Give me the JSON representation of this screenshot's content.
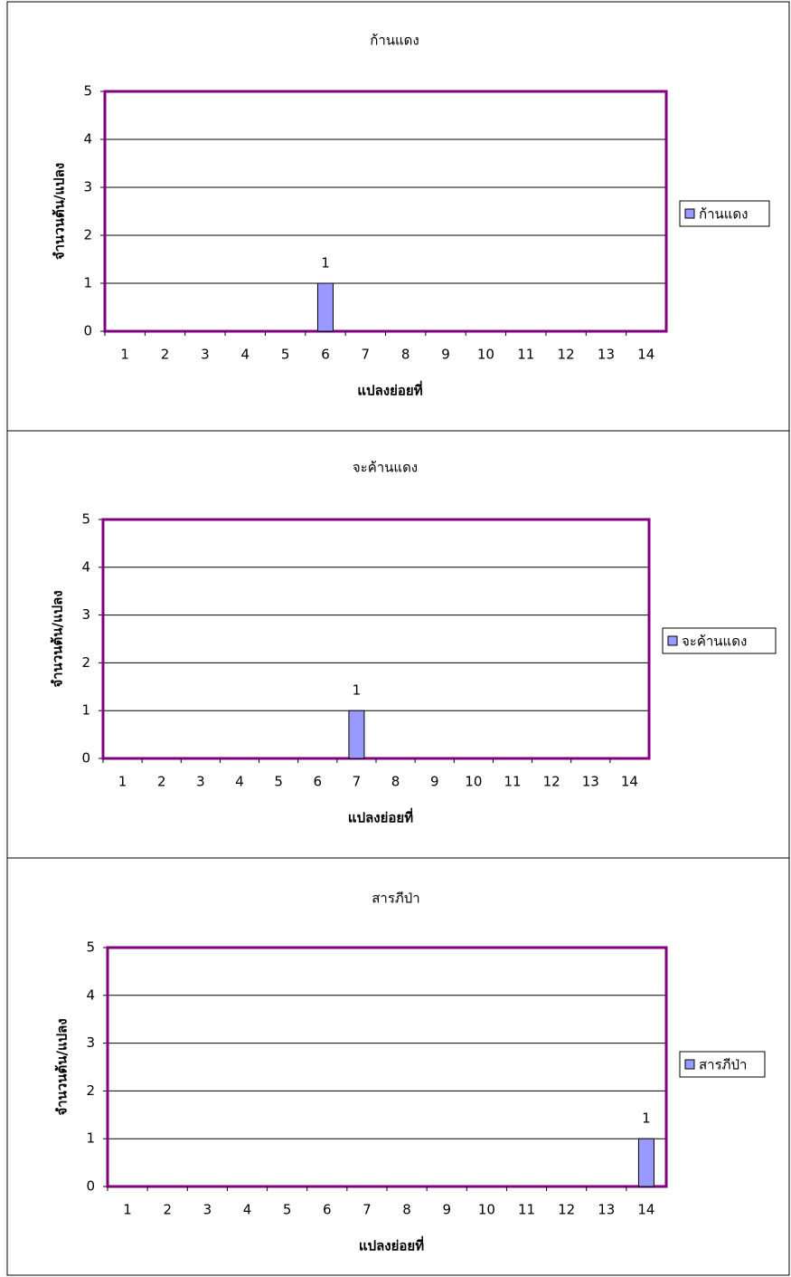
{
  "chart_data": [
    {
      "type": "bar",
      "title": "ก้านแดง",
      "x_label": "แปลงย่อยที่",
      "y_label": "จำนวนต้น/แปลง",
      "categories": [
        "1",
        "2",
        "3",
        "4",
        "5",
        "6",
        "7",
        "8",
        "9",
        "10",
        "11",
        "12",
        "13",
        "14"
      ],
      "series": [
        {
          "name": "ก้านแดง",
          "color": "#9999ff",
          "values": [
            0,
            0,
            0,
            0,
            0,
            1,
            0,
            0,
            0,
            0,
            0,
            0,
            0,
            0
          ]
        }
      ],
      "ylim": [
        0,
        5
      ],
      "yticks": [
        0,
        1,
        2,
        3,
        4,
        5
      ],
      "grid": true,
      "legend": "right"
    },
    {
      "type": "bar",
      "title": "จะค้านแดง",
      "x_label": "แปลงย่อยที่",
      "y_label": "จำนวนต้น/แปลง",
      "categories": [
        "1",
        "2",
        "3",
        "4",
        "5",
        "6",
        "7",
        "8",
        "9",
        "10",
        "11",
        "12",
        "13",
        "14"
      ],
      "series": [
        {
          "name": "จะค้านแดง",
          "color": "#9999ff",
          "values": [
            0,
            0,
            0,
            0,
            0,
            0,
            1,
            0,
            0,
            0,
            0,
            0,
            0,
            0
          ]
        }
      ],
      "ylim": [
        0,
        5
      ],
      "yticks": [
        0,
        1,
        2,
        3,
        4,
        5
      ],
      "grid": true,
      "legend": "right"
    },
    {
      "type": "bar",
      "title": "สารภีป่า",
      "x_label": "แปลงย่อยที่",
      "y_label": "จำนวนต้น/แปลง",
      "categories": [
        "1",
        "2",
        "3",
        "4",
        "5",
        "6",
        "7",
        "8",
        "9",
        "10",
        "11",
        "12",
        "13",
        "14"
      ],
      "series": [
        {
          "name": "สารภีป่า",
          "color": "#9999ff",
          "values": [
            0,
            0,
            0,
            0,
            0,
            0,
            0,
            0,
            0,
            0,
            0,
            0,
            0,
            1
          ]
        }
      ],
      "ylim": [
        0,
        5
      ],
      "yticks": [
        0,
        1,
        2,
        3,
        4,
        5
      ],
      "grid": true,
      "legend": "right"
    }
  ]
}
